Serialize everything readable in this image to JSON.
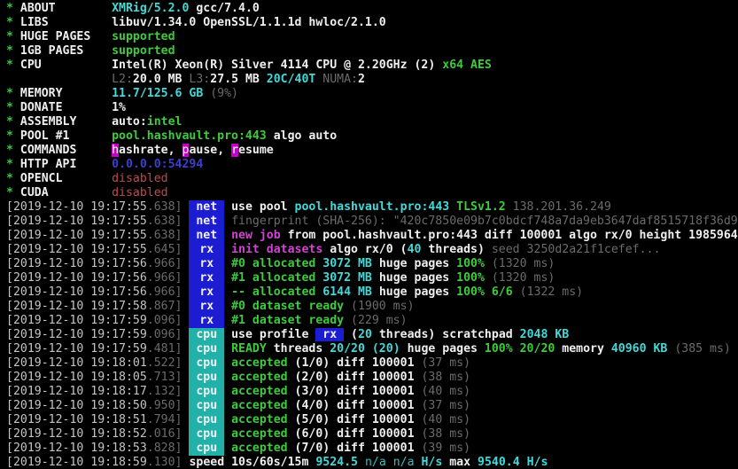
{
  "palette": {
    "W": {
      "color": "#efefef",
      "bold": true
    },
    "w": {
      "color": "#c9c9c9",
      "bold": false
    },
    "G": {
      "color": "#3ecb3e",
      "bold": true
    },
    "g": {
      "color": "#36b336",
      "bold": false
    },
    "C": {
      "color": "#41d9d9",
      "bold": true
    },
    "c": {
      "color": "#2fc0c0",
      "bold": false
    },
    "M": {
      "color": "#cf45cf",
      "bold": true
    },
    "d": {
      "color": "#6b6b6b",
      "bold": false
    },
    "r": {
      "color": "#c14a4a",
      "bold": false
    },
    "b": {
      "color": "#3d3dd2",
      "bold": true
    },
    "hl": {
      "color": "#ffffff",
      "bold": false,
      "bg": "#c400c4"
    },
    "X": {
      "color": "#efefef",
      "bold": true,
      "bg": "#1c1cd2"
    },
    "tmain": {
      "color": "#c4c4c4",
      "bold": false
    },
    "tms": {
      "color": "#6b6b6b",
      "bold": false
    }
  },
  "badges": {
    "blue": {
      "bg": "#1c1cd2",
      "fg": "#efefef"
    },
    "teal": {
      "bg": "#21b1a8",
      "fg": "#f2f2f2"
    }
  },
  "terminal": {
    "meta_rows": [
      {
        "star": "*",
        "label": "ABOUT",
        "segments": [
          [
            "XMRig/5.2.0",
            "C"
          ],
          [
            " gcc/7.4.0",
            "W"
          ]
        ]
      },
      {
        "star": "*",
        "label": "LIBS",
        "segments": [
          [
            "libuv/1.34.0 OpenSSL/1.1.1d hwloc/2.1.0",
            "W"
          ]
        ]
      },
      {
        "star": "*",
        "label": "HUGE PAGES",
        "segments": [
          [
            "supported",
            "G"
          ]
        ]
      },
      {
        "star": "*",
        "label": "1GB PAGES",
        "segments": [
          [
            "supported",
            "G"
          ]
        ]
      },
      {
        "star": "*",
        "label": "CPU",
        "segments": [
          [
            "Intel(R) Xeon(R) Silver 4114 CPU @ 2.20GHz (2) ",
            "W"
          ],
          [
            "x64 AES",
            "G"
          ]
        ]
      },
      {
        "star": "",
        "label": "",
        "segments": [
          [
            "L2:",
            "d"
          ],
          [
            "20.0 MB",
            "W"
          ],
          [
            " L3:",
            "d"
          ],
          [
            "27.5 MB",
            "W"
          ],
          [
            " 20C/40T",
            "C"
          ],
          [
            " NUMA:",
            "d"
          ],
          [
            "2",
            "W"
          ]
        ]
      },
      {
        "star": "*",
        "label": "MEMORY",
        "segments": [
          [
            "11.7/125.6 GB",
            "C"
          ],
          [
            " (9%)",
            "d"
          ]
        ]
      },
      {
        "star": "*",
        "label": "DONATE",
        "segments": [
          [
            "1%",
            "W"
          ]
        ]
      },
      {
        "star": "*",
        "label": "ASSEMBLY",
        "segments": [
          [
            "auto:",
            "W"
          ],
          [
            "intel",
            "G"
          ]
        ]
      },
      {
        "star": "*",
        "label": "POOL #1",
        "segments": [
          [
            "pool.hashvault.pro:443",
            "G"
          ],
          [
            " algo auto",
            "W"
          ]
        ]
      },
      {
        "star": "*",
        "label": "COMMANDS",
        "segments": [
          [
            "h",
            "hl"
          ],
          [
            "ashrate, ",
            "W"
          ],
          [
            "p",
            "hl"
          ],
          [
            "ause, ",
            "W"
          ],
          [
            "r",
            "hl"
          ],
          [
            "esume",
            "W"
          ]
        ]
      },
      {
        "star": "*",
        "label": "HTTP API",
        "segments": [
          [
            "0.0.0.0:54294",
            "b"
          ]
        ]
      },
      {
        "star": "*",
        "label": "OPENCL",
        "segments": [
          [
            "disabled",
            "r"
          ]
        ]
      },
      {
        "star": "*",
        "label": "CUDA",
        "segments": [
          [
            "disabled",
            "r"
          ]
        ]
      }
    ],
    "log_rows": [
      {
        "time": "[2019-12-10 19:17:55",
        "ms": ".638]",
        "badge": {
          "text": "net",
          "type": "blue"
        },
        "segments": [
          [
            "use pool ",
            "W"
          ],
          [
            "pool.hashvault.pro:443",
            "C"
          ],
          [
            " TLSv1.2",
            "G"
          ],
          [
            " 138.201.36.249",
            "d"
          ]
        ]
      },
      {
        "time": "[2019-12-10 19:17:55",
        "ms": ".638]",
        "badge": {
          "text": "net",
          "type": "blue"
        },
        "segments": [
          [
            "fingerprint (SHA-256): \"420c7850e09b7c0bdcf748a7da9eb3647daf8515718f36d96",
            "d"
          ]
        ]
      },
      {
        "time": "[2019-12-10 19:17:55",
        "ms": ".638]",
        "badge": {
          "text": "net",
          "type": "blue"
        },
        "segments": [
          [
            "new job",
            "M"
          ],
          [
            " from pool.hashvault.pro:443 diff 100001 algo rx/0 height 1985964",
            "W"
          ]
        ]
      },
      {
        "time": "[2019-12-10 19:17:55",
        "ms": ".645]",
        "badge": {
          "text": "rx",
          "type": "blue"
        },
        "segments": [
          [
            "init datasets",
            "M"
          ],
          [
            " algo rx/0 (",
            "W"
          ],
          [
            "40",
            "C"
          ],
          [
            " threads)",
            "W"
          ],
          [
            " seed 3250d2a21f1cefef...",
            "d"
          ]
        ]
      },
      {
        "time": "[2019-12-10 19:17:56",
        "ms": ".966]",
        "badge": {
          "text": "rx",
          "type": "blue"
        },
        "segments": [
          [
            "#0 allocated",
            "G"
          ],
          [
            " 3072 MB",
            "C"
          ],
          [
            " huge pages",
            "W"
          ],
          [
            " 100%",
            "G"
          ],
          [
            " (1320 ms)",
            "d"
          ]
        ]
      },
      {
        "time": "[2019-12-10 19:17:56",
        "ms": ".966]",
        "badge": {
          "text": "rx",
          "type": "blue"
        },
        "segments": [
          [
            "#1 allocated",
            "G"
          ],
          [
            " 3072 MB",
            "C"
          ],
          [
            " huge pages",
            "W"
          ],
          [
            " 100%",
            "G"
          ],
          [
            " (1320 ms)",
            "d"
          ]
        ]
      },
      {
        "time": "[2019-12-10 19:17:56",
        "ms": ".966]",
        "badge": {
          "text": "rx",
          "type": "blue"
        },
        "segments": [
          [
            "-- allocated",
            "G"
          ],
          [
            " 6144 MB",
            "C"
          ],
          [
            " huge pages",
            "W"
          ],
          [
            " 100% 6/6",
            "G"
          ],
          [
            " (1322 ms)",
            "d"
          ]
        ]
      },
      {
        "time": "[2019-12-10 19:17:58",
        "ms": ".867]",
        "badge": {
          "text": "rx",
          "type": "blue"
        },
        "segments": [
          [
            "#0 dataset ready",
            "G"
          ],
          [
            " (1900 ms)",
            "d"
          ]
        ]
      },
      {
        "time": "[2019-12-10 19:17:59",
        "ms": ".096]",
        "badge": {
          "text": "rx",
          "type": "blue"
        },
        "segments": [
          [
            "#1 dataset ready",
            "G"
          ],
          [
            " (229 ms)",
            "d"
          ]
        ]
      },
      {
        "time": "[2019-12-10 19:17:59",
        "ms": ".096]",
        "badge": {
          "text": "cpu",
          "type": "teal"
        },
        "segments": [
          [
            "use profile ",
            "W"
          ],
          [
            " rx ",
            "X"
          ],
          [
            " (",
            "W"
          ],
          [
            "20",
            "C"
          ],
          [
            " threads)",
            "W"
          ],
          [
            " scratchpad ",
            "W"
          ],
          [
            "2048 KB",
            "C"
          ]
        ]
      },
      {
        "time": "[2019-12-10 19:17:59",
        "ms": ".481]",
        "badge": {
          "text": "cpu",
          "type": "teal"
        },
        "segments": [
          [
            "READY",
            "G"
          ],
          [
            " threads ",
            "W"
          ],
          [
            "20/20 (20)",
            "C"
          ],
          [
            " huge pages ",
            "W"
          ],
          [
            "100% 20/20",
            "G"
          ],
          [
            " memory ",
            "W"
          ],
          [
            "40960 KB",
            "C"
          ],
          [
            " (385 ms)",
            "d"
          ]
        ]
      },
      {
        "time": "[2019-12-10 19:18:01",
        "ms": ".522]",
        "badge": {
          "text": "cpu",
          "type": "teal"
        },
        "segments": [
          [
            "accepted",
            "G"
          ],
          [
            " (1/0) diff 100001",
            "W"
          ],
          [
            " (37 ms)",
            "d"
          ]
        ]
      },
      {
        "time": "[2019-12-10 19:18:05",
        "ms": ".713]",
        "badge": {
          "text": "cpu",
          "type": "teal"
        },
        "segments": [
          [
            "accepted",
            "G"
          ],
          [
            " (2/0) diff 100001",
            "W"
          ],
          [
            " (38 ms)",
            "d"
          ]
        ]
      },
      {
        "time": "[2019-12-10 19:18:17",
        "ms": ".132]",
        "badge": {
          "text": "cpu",
          "type": "teal"
        },
        "segments": [
          [
            "accepted",
            "G"
          ],
          [
            " (3/0) diff 100001",
            "W"
          ],
          [
            " (40 ms)",
            "d"
          ]
        ]
      },
      {
        "time": "[2019-12-10 19:18:50",
        "ms": ".950]",
        "badge": {
          "text": "cpu",
          "type": "teal"
        },
        "segments": [
          [
            "accepted",
            "G"
          ],
          [
            " (4/0) diff 100001",
            "W"
          ],
          [
            " (37 ms)",
            "d"
          ]
        ]
      },
      {
        "time": "[2019-12-10 19:18:51",
        "ms": ".794]",
        "badge": {
          "text": "cpu",
          "type": "teal"
        },
        "segments": [
          [
            "accepted",
            "G"
          ],
          [
            " (5/0) diff 100001",
            "W"
          ],
          [
            " (40 ms)",
            "d"
          ]
        ]
      },
      {
        "time": "[2019-12-10 19:18:52",
        "ms": ".016]",
        "badge": {
          "text": "cpu",
          "type": "teal"
        },
        "segments": [
          [
            "accepted",
            "G"
          ],
          [
            " (6/0) diff 100001",
            "W"
          ],
          [
            " (38 ms)",
            "d"
          ]
        ]
      },
      {
        "time": "[2019-12-10 19:18:53",
        "ms": ".828]",
        "badge": {
          "text": "cpu",
          "type": "teal"
        },
        "segments": [
          [
            "accepted",
            "G"
          ],
          [
            " (7/0) diff 100001",
            "W"
          ],
          [
            " (39 ms)",
            "d"
          ]
        ]
      },
      {
        "time": "[2019-12-10 19:18:59",
        "ms": ".130]",
        "badge": null,
        "segments": [
          [
            "speed 10s/60s/15m ",
            "W"
          ],
          [
            "9524.5",
            "C"
          ],
          [
            " n/a n/a",
            "c"
          ],
          [
            " H/s",
            "C"
          ],
          [
            " max ",
            "W"
          ],
          [
            "9540.4 H/s",
            "C"
          ]
        ]
      }
    ]
  }
}
